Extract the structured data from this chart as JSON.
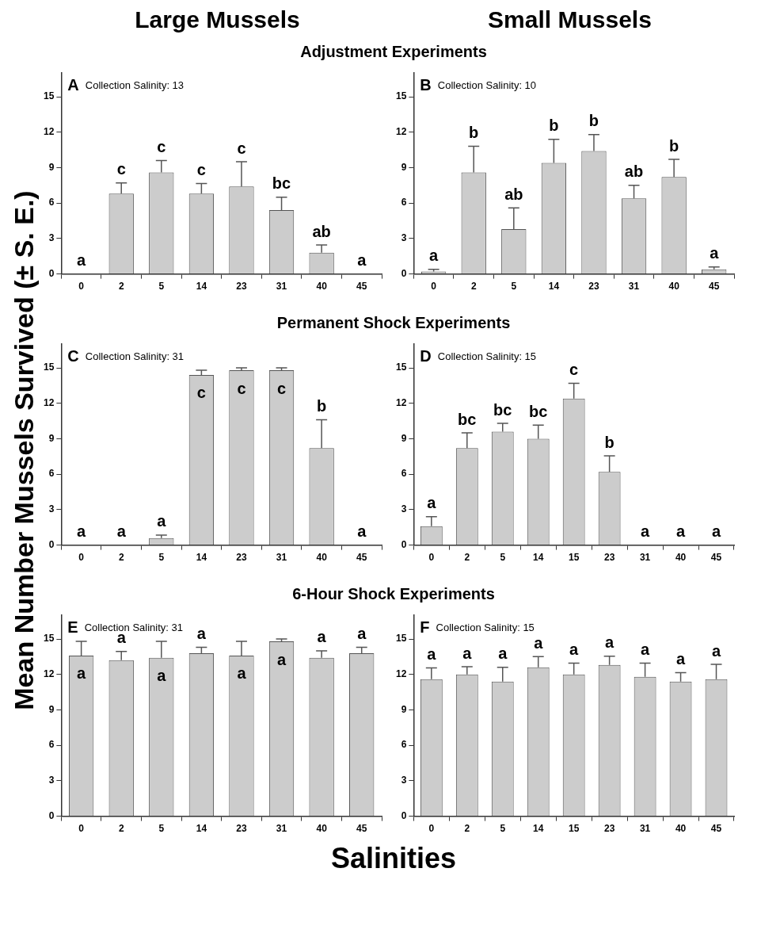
{
  "chart_data": [
    {
      "type": "bar",
      "title": "Large Mussels",
      "subtitle": "Adjustment Experiments",
      "annotations": [
        "A",
        "Collection Salinity: 13"
      ],
      "categories": [
        "0",
        "2",
        "5",
        "14",
        "23",
        "31",
        "40",
        "45"
      ],
      "values": [
        0,
        6.8,
        8.6,
        6.8,
        7.4,
        5.4,
        1.8,
        0
      ],
      "errors": [
        null,
        [
          6.8,
          7.7
        ],
        [
          8.6,
          9.6
        ],
        [
          6.8,
          7.65
        ],
        [
          7.4,
          9.5
        ],
        [
          5.4,
          6.5
        ],
        [
          1.8,
          2.45
        ],
        null
      ],
      "value_labels": [
        "a",
        "c",
        "c",
        "c",
        "c",
        "bc",
        "ab",
        "a"
      ],
      "color": "#cccccc",
      "ylim": [
        0,
        17
      ],
      "yticks": [
        0,
        3,
        6,
        9,
        12,
        15
      ],
      "grid": false,
      "legend": false
    },
    {
      "type": "bar",
      "title": "Small Mussels",
      "annotations": [
        "B",
        "Collection Salinity: 10"
      ],
      "categories": [
        "0",
        "2",
        "5",
        "14",
        "23",
        "31",
        "40",
        "45"
      ],
      "values": [
        0.2,
        8.6,
        3.8,
        9.4,
        10.4,
        6.4,
        8.2,
        0.4
      ],
      "errors": [
        [
          0.2,
          0.4
        ],
        [
          8.6,
          10.8
        ],
        [
          3.8,
          5.6
        ],
        [
          9.4,
          11.4
        ],
        [
          10.4,
          11.8
        ],
        [
          6.4,
          7.5
        ],
        [
          8.2,
          9.7
        ],
        [
          0.4,
          0.6
        ]
      ],
      "value_labels": [
        "a",
        "b",
        "ab",
        "b",
        "b",
        "ab",
        "b",
        "a"
      ],
      "color": "#cccccc",
      "ylim": [
        0,
        17
      ],
      "yticks": [
        0,
        3,
        6,
        9,
        12,
        15
      ],
      "grid": false,
      "legend": false
    },
    {
      "type": "bar",
      "subtitle": "Permanent Shock Experiments",
      "ylabel": "Mean Number Mussels Survived (± S. E.)",
      "annotations": [
        "C",
        "Collection Salinity: 31"
      ],
      "categories": [
        "0",
        "2",
        "5",
        "14",
        "23",
        "31",
        "40",
        "45"
      ],
      "values": [
        0,
        0,
        0.6,
        14.4,
        14.8,
        14.8,
        8.2,
        0
      ],
      "errors": [
        null,
        null,
        [
          0.6,
          0.85
        ],
        [
          14.4,
          14.8
        ],
        [
          14.8,
          15
        ],
        [
          14.8,
          15
        ],
        [
          8.2,
          10.6
        ],
        null
      ],
      "value_labels": [
        "a",
        "a",
        "a",
        "c",
        "c",
        "c",
        "b",
        "a"
      ],
      "color": "#cccccc",
      "ylim": [
        0,
        17
      ],
      "yticks": [
        0,
        3,
        6,
        9,
        12,
        15
      ],
      "grid": false,
      "legend": false
    },
    {
      "type": "bar",
      "annotations": [
        "D",
        "Collection Salinity: 15"
      ],
      "categories": [
        "0",
        "2",
        "5",
        "14",
        "15",
        "23",
        "31",
        "40",
        "45"
      ],
      "values": [
        1.6,
        8.2,
        9.6,
        9.0,
        12.4,
        6.2,
        0,
        0,
        0
      ],
      "errors": [
        [
          1.6,
          2.4
        ],
        [
          8.2,
          9.5
        ],
        [
          9.6,
          10.3
        ],
        [
          9.0,
          10.15
        ],
        [
          12.4,
          13.7
        ],
        [
          6.2,
          7.55
        ],
        null,
        null,
        null
      ],
      "value_labels": [
        "a",
        "bc",
        "bc",
        "bc",
        "c",
        "b",
        "a",
        "a",
        "a"
      ],
      "color": "#cccccc",
      "ylim": [
        0,
        17
      ],
      "yticks": [
        0,
        3,
        6,
        9,
        12,
        15
      ],
      "grid": false,
      "legend": false
    },
    {
      "type": "bar",
      "subtitle": "6-Hour Shock Experiments",
      "xlabel": "Salinities",
      "annotations": [
        "E",
        "Collection Salinity: 31"
      ],
      "categories": [
        "0",
        "2",
        "5",
        "14",
        "23",
        "31",
        "40",
        "45"
      ],
      "values": [
        13.6,
        13.2,
        13.4,
        13.8,
        13.6,
        14.8,
        13.4,
        13.8
      ],
      "errors": [
        [
          13.6,
          14.8
        ],
        [
          13.2,
          13.95
        ],
        [
          13.4,
          14.8
        ],
        [
          13.8,
          14.3
        ],
        [
          13.6,
          14.8
        ],
        [
          14.8,
          15
        ],
        [
          13.4,
          14
        ],
        [
          13.8,
          14.3
        ]
      ],
      "value_labels": [
        "a",
        "a",
        "a",
        "a",
        "a",
        "a",
        "a",
        "a"
      ],
      "color": "#cccccc",
      "ylim": [
        0,
        17
      ],
      "yticks": [
        0,
        3,
        6,
        9,
        12,
        15
      ],
      "grid": false,
      "legend": false
    },
    {
      "type": "bar",
      "annotations": [
        "F",
        "Collection Salinity: 15"
      ],
      "categories": [
        "0",
        "2",
        "5",
        "14",
        "15",
        "23",
        "31",
        "40",
        "45"
      ],
      "values": [
        11.6,
        12.0,
        11.4,
        12.6,
        12.0,
        12.8,
        11.8,
        11.4,
        11.6
      ],
      "errors": [
        [
          11.6,
          12.55
        ],
        [
          12.0,
          12.65
        ],
        [
          11.4,
          12.6
        ],
        [
          12.6,
          13.5
        ],
        [
          12.0,
          12.95
        ],
        [
          12.8,
          13.55
        ],
        [
          11.8,
          12.95
        ],
        [
          11.4,
          12.15
        ],
        [
          11.6,
          12.85
        ]
      ],
      "value_labels": [
        "a",
        "a",
        "a",
        "a",
        "a",
        "a",
        "a",
        "a",
        "a"
      ],
      "color": "#cccccc",
      "ylim": [
        0,
        17
      ],
      "yticks": [
        0,
        3,
        6,
        9,
        12,
        15
      ],
      "grid": false,
      "legend": false
    }
  ]
}
